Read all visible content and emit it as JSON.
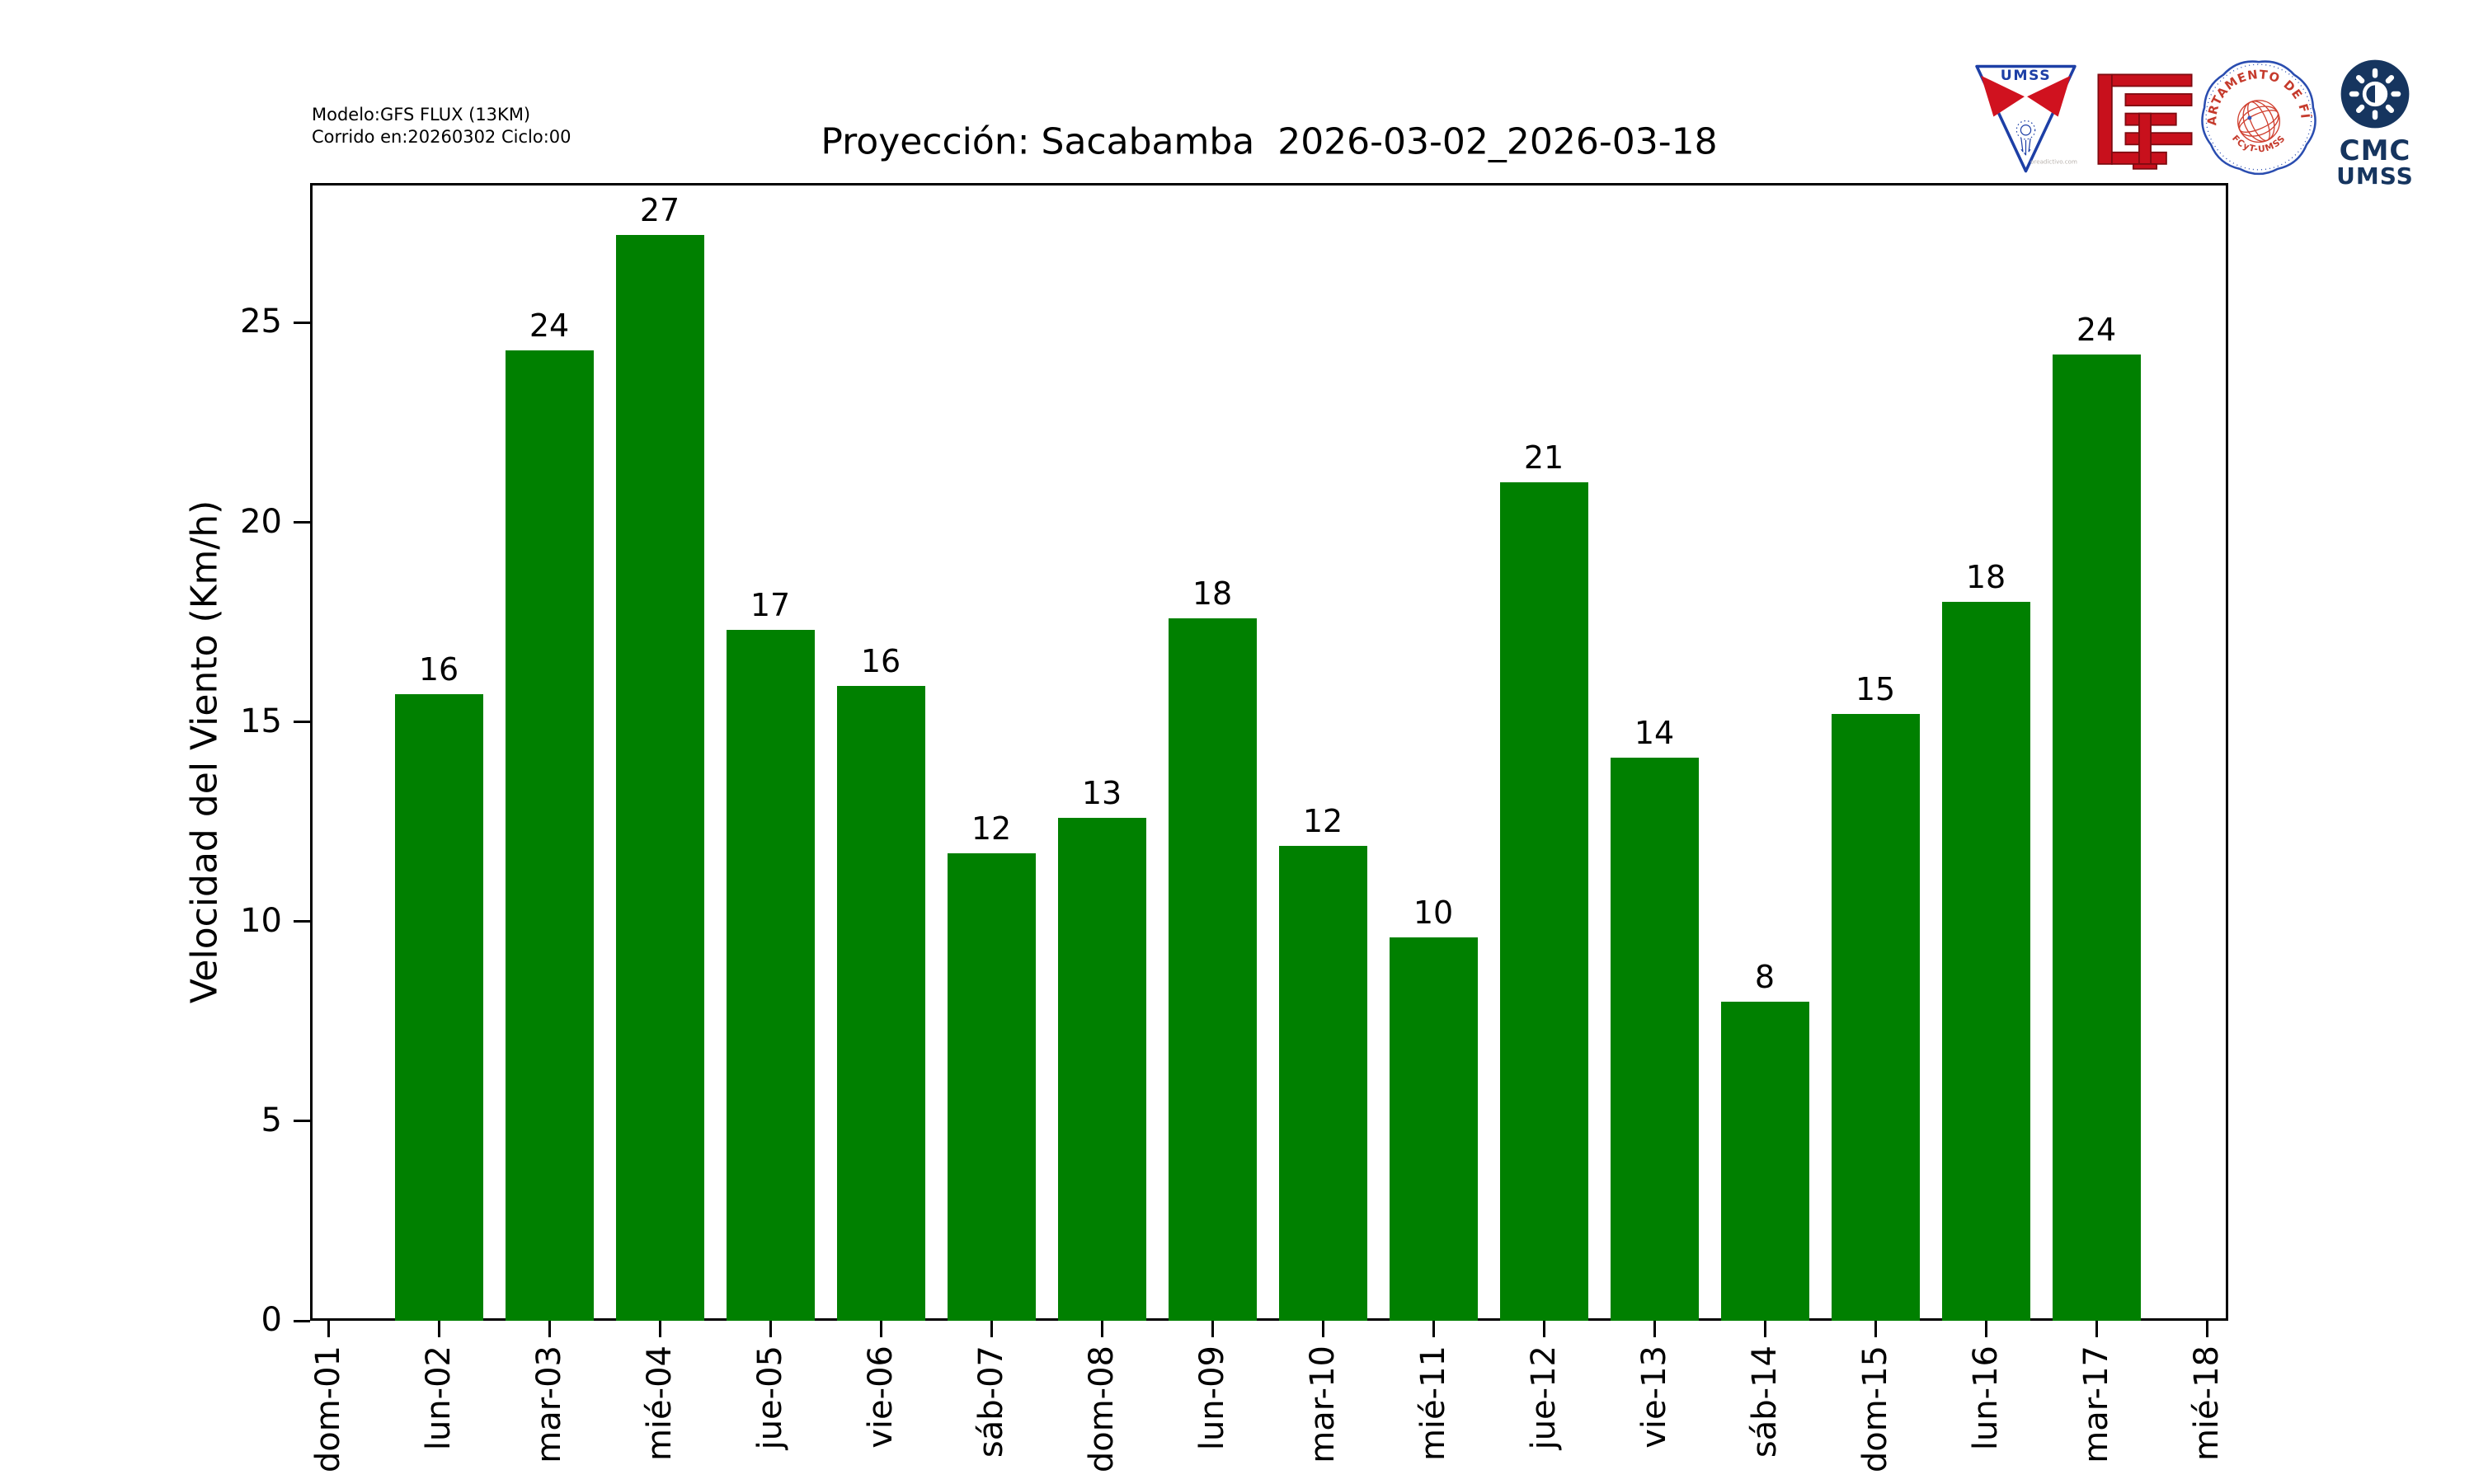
{
  "header": {
    "model_line1": "Modelo:GFS FLUX (13KM)",
    "model_line2": "Corrido en:20260302 Ciclo:00",
    "title": "Proyección: Sacabamba  2026-03-02_2026-03-18",
    "logos": {
      "pennant_text": "UMSS",
      "pennant_watermark": "oreadictivo.com",
      "seal_top": "DEPARTAMENTO DE FÍSICA",
      "seal_bottom": "FCyT-UMSS",
      "cmc_line1": "CMC",
      "cmc_line2": "UMSS"
    }
  },
  "chart_data": {
    "type": "bar",
    "title": "Proyección: Sacabamba  2026-03-02_2026-03-18",
    "xlabel": "",
    "ylabel": "Velocidad del Viento (Km/h)",
    "categories": [
      "dom-01",
      "lun-02",
      "mar-03",
      "mié-04",
      "jue-05",
      "vie-06",
      "sáb-07",
      "dom-08",
      "lun-09",
      "mar-10",
      "mié-11",
      "jue-12",
      "vie-13",
      "sáb-14",
      "dom-15",
      "lun-16",
      "mar-17",
      "mié-18"
    ],
    "values": [
      null,
      15.7,
      24.3,
      27.2,
      17.3,
      15.9,
      11.7,
      12.6,
      17.6,
      11.9,
      9.6,
      21.0,
      14.1,
      8.0,
      15.2,
      18.0,
      24.2,
      null
    ],
    "bar_labels": [
      null,
      "16",
      "24",
      "27",
      "17",
      "16",
      "12",
      "13",
      "18",
      "12",
      "10",
      "21",
      "14",
      "8",
      "15",
      "18",
      "24",
      null
    ],
    "yticks": [
      0,
      5,
      10,
      15,
      20,
      25
    ],
    "ylim": [
      0,
      28.5
    ],
    "bar_color": "#008000",
    "grid": false,
    "legend_position": "none"
  }
}
